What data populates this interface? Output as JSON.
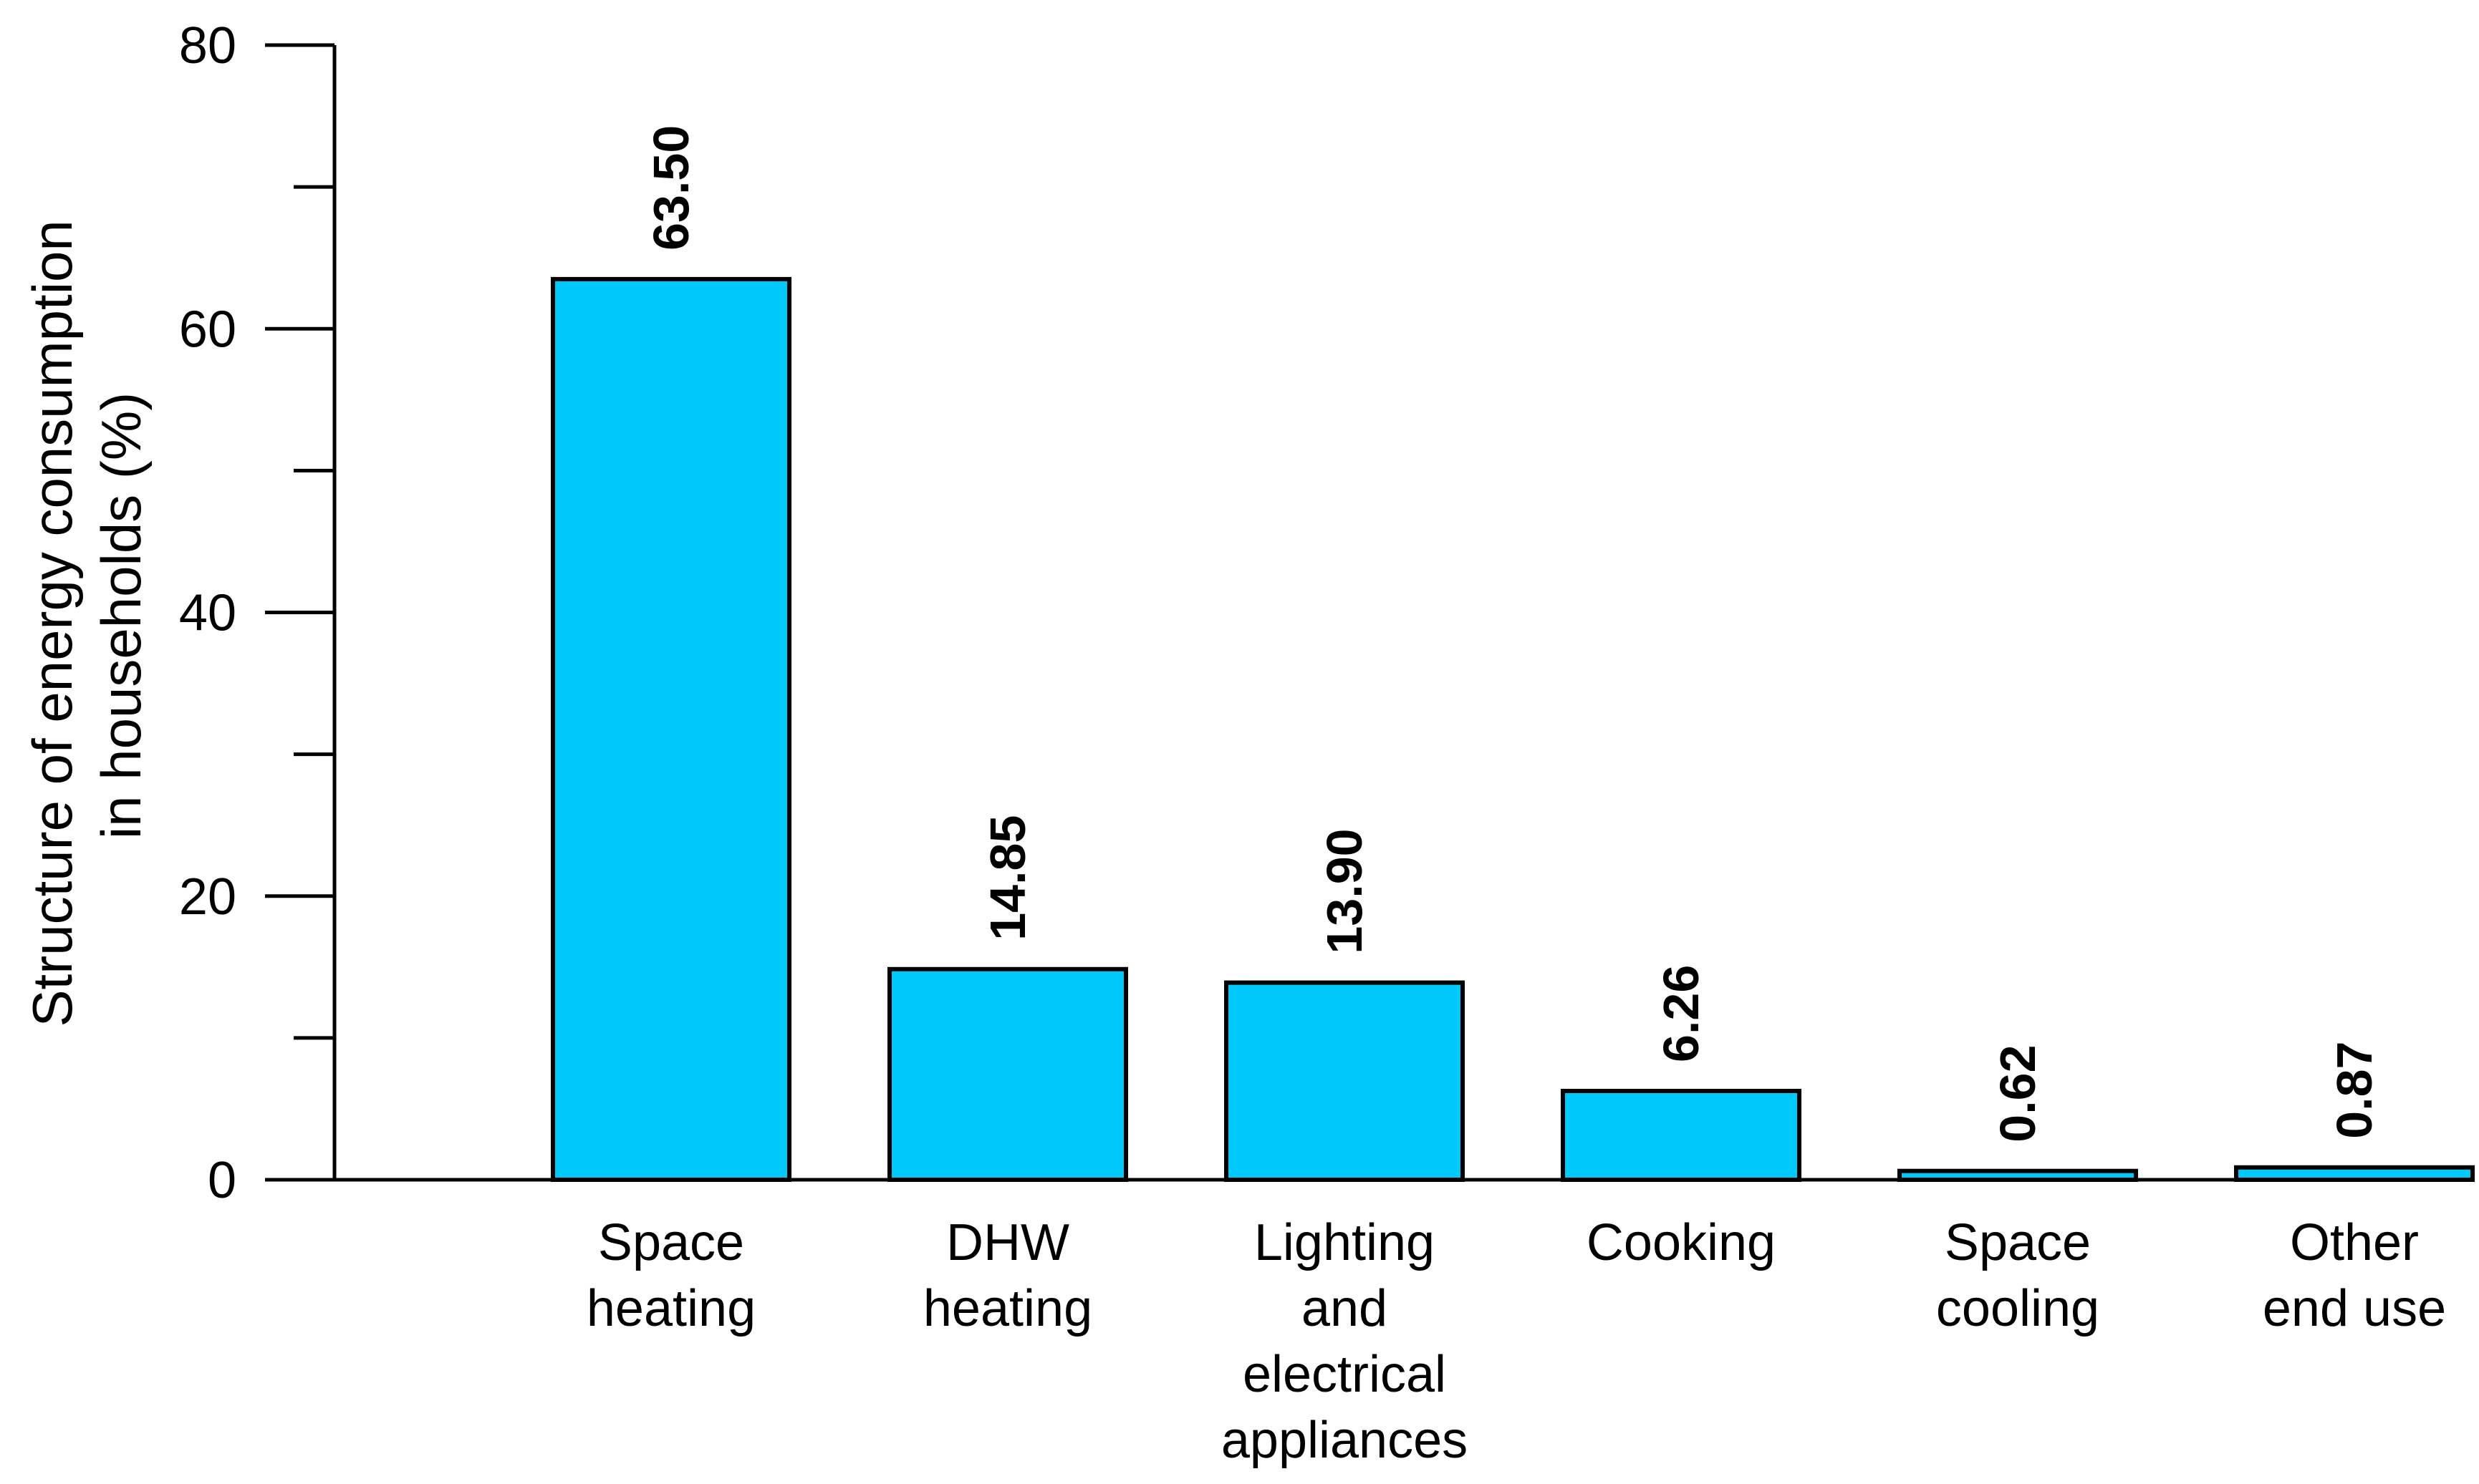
{
  "chart_data": {
    "type": "bar",
    "categories": [
      [
        "Space",
        "heating"
      ],
      [
        "DHW",
        "heating"
      ],
      [
        "Lighting",
        "and",
        "electrical",
        "appliances"
      ],
      [
        "Cooking"
      ],
      [
        "Space",
        "cooling"
      ],
      [
        "Other",
        "end use"
      ]
    ],
    "values": [
      63.5,
      14.85,
      13.9,
      6.26,
      0.62,
      0.87
    ],
    "data_labels": [
      "63.50",
      "14.85",
      "13.90",
      "6.26",
      "0.62",
      "0.87"
    ],
    "ylabel": [
      "Structure of energy consumption",
      "in households (%)"
    ],
    "xlabel": "",
    "title": "",
    "ylim": [
      0,
      80
    ],
    "y_major_ticks": [
      0,
      20,
      40,
      60,
      80
    ],
    "y_minor_ticks": [
      10,
      30,
      50,
      70
    ],
    "bar_color": "#00c8f8",
    "bar_outline": "#000000",
    "grid": false,
    "legend": "none"
  }
}
